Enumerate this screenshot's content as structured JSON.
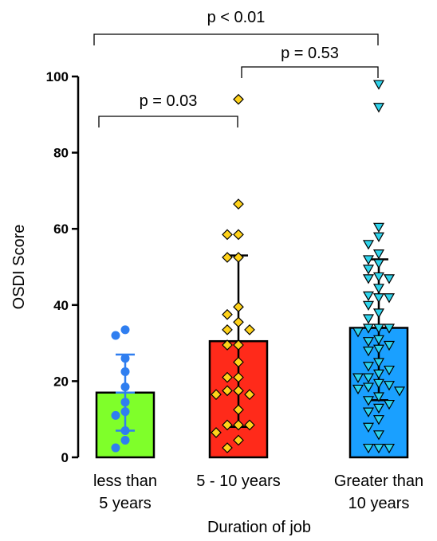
{
  "chart_data": {
    "type": "bar",
    "xlabel": "Duration of job",
    "ylabel": "OSDI Score",
    "ylim": [
      0,
      100
    ],
    "yticks": [
      0,
      20,
      40,
      60,
      80,
      100
    ],
    "categories": [
      {
        "lines": [
          "less than",
          "5 years"
        ]
      },
      {
        "lines": [
          "5 - 10 years"
        ]
      },
      {
        "lines": [
          "Greater than",
          "10 years"
        ]
      }
    ],
    "bars": [
      {
        "mean": 17,
        "sd_low": 7,
        "sd_high": 27,
        "color": "#7fff2a",
        "marker": "circle",
        "marker_color": "#2f7ef0",
        "points": [
          33.5,
          32,
          26,
          22.5,
          18.5,
          14.5,
          12,
          11,
          7,
          4.5,
          2.5
        ]
      },
      {
        "mean": 30.5,
        "sd_low": 8,
        "sd_high": 53,
        "color": "#ff2a1a",
        "marker": "diamond",
        "marker_color": "#ffd21a",
        "points": [
          94,
          66.5,
          58.5,
          58.5,
          52.5,
          52.5,
          39.5,
          37.5,
          35.5,
          33.5,
          33.5,
          29.5,
          29.5,
          25,
          21,
          21,
          17.5,
          17.5,
          16.5,
          16.5,
          12.5,
          8.5,
          8.5,
          8.5,
          6.5,
          4.5,
          2.5
        ]
      },
      {
        "mean": 34,
        "sd_low": 15,
        "sd_high": 52,
        "color": "#1aa0ff",
        "marker": "triangle",
        "marker_color": "#2fd4ec",
        "points": [
          98,
          92,
          60.5,
          58,
          56,
          53.5,
          52,
          51,
          49.5,
          47.5,
          47,
          47,
          44.5,
          42.5,
          42,
          42,
          40,
          38,
          36.5,
          34,
          34,
          34,
          33,
          31,
          30.5,
          29.5,
          28.5,
          28,
          25,
          24,
          23,
          22,
          21,
          21,
          19.5,
          19,
          18.5,
          18,
          17.5,
          16,
          15,
          14,
          13,
          12,
          10,
          8,
          6,
          2.5,
          2.5,
          2.5
        ]
      }
    ],
    "comparisons": [
      {
        "from": 0,
        "to": 1,
        "label": "p = 0.03"
      },
      {
        "from": 1,
        "to": 2,
        "label": "p = 0.53"
      },
      {
        "from": 0,
        "to": 2,
        "label": "p < 0.01"
      }
    ]
  }
}
